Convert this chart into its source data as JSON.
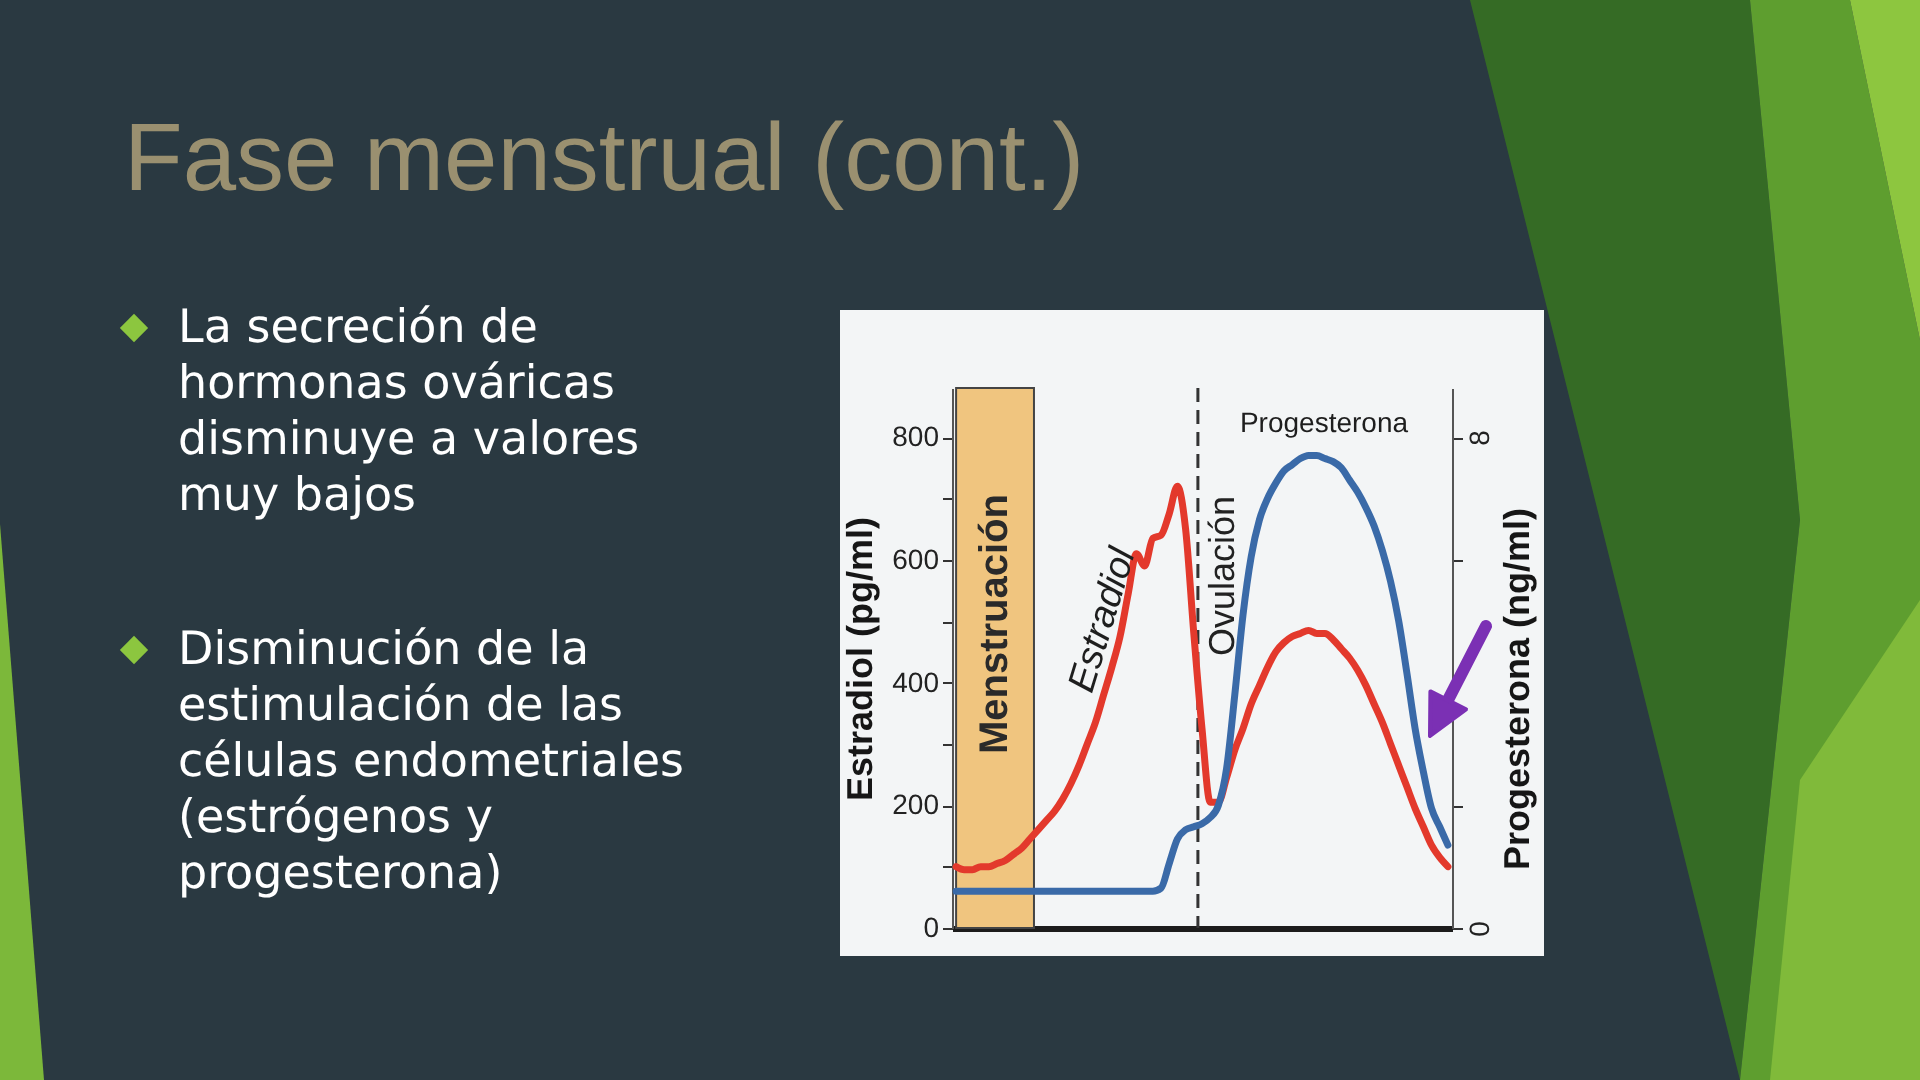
{
  "chart_data": {
    "type": "line",
    "title": "Fase menstrual (cont.)",
    "ylabel": "Estradiol (pg/ml)",
    "y2label": "Progesterona (ng/ml)",
    "annotations": [
      "La secreción de hormonas ováricas disminuye a valores muy bajos",
      "Disminución de la estimulación de las células endometriales (estrógenos y progesterona)",
      "Menstruación",
      "Ovulación"
    ],
    "categories": [
      null,
      null,
      null,
      null,
      null,
      null,
      null,
      null,
      null,
      null,
      null,
      null,
      null,
      null,
      null,
      null,
      null,
      null,
      null,
      null,
      null,
      null,
      null,
      null,
      null,
      null,
      null,
      null,
      null,
      null,
      null,
      null,
      null,
      null,
      null,
      null,
      null,
      null,
      null,
      null,
      null,
      null,
      null,
      null,
      null,
      null,
      null,
      null,
      null,
      null,
      null,
      null,
      null,
      null,
      null,
      null,
      null,
      null,
      null,
      null,
      null
    ],
    "series": [
      {
        "name": "Estradiol",
        "color": "#e3392c",
        "values": [
          100,
          95,
          95,
          100,
          100,
          105,
          110,
          120,
          130,
          145,
          160,
          175,
          190,
          210,
          235,
          265,
          300,
          335,
          380,
          425,
          475,
          545,
          610,
          590,
          635,
          640,
          675,
          720,
          650,
          480,
          325,
          205,
          205,
          245,
          290,
          325,
          365,
          395,
          425,
          450,
          465,
          475,
          480,
          485,
          480,
          480,
          470,
          455,
          440,
          420,
          395,
          365,
          335,
          300,
          265,
          230,
          195,
          165,
          135,
          115,
          100
        ]
      },
      {
        "name": "Progesterona",
        "color": "#3a6aa8",
        "axis": "y2",
        "values": [
          0.6,
          0.6,
          0.6,
          0.6,
          0.6,
          0.6,
          0.6,
          0.6,
          0.6,
          0.6,
          0.6,
          0.6,
          0.6,
          0.6,
          0.6,
          0.6,
          0.6,
          0.6,
          0.6,
          0.6,
          0.6,
          0.6,
          0.6,
          0.6,
          0.6,
          0.65,
          1.05,
          1.45,
          1.6,
          1.65,
          1.7,
          1.8,
          2.0,
          2.6,
          3.8,
          5.1,
          6.05,
          6.65,
          7.0,
          7.25,
          7.45,
          7.55,
          7.65,
          7.7,
          7.7,
          7.65,
          7.6,
          7.5,
          7.3,
          7.1,
          6.85,
          6.55,
          6.15,
          5.65,
          5.0,
          4.15,
          3.25,
          2.55,
          1.95,
          1.65,
          1.35
        ]
      }
    ],
    "ylim": [
      0,
      880
    ],
    "yticks": [
      0,
      {
        "value": 100,
        "label": null
      },
      200,
      {
        "value": 300,
        "label": null
      },
      400,
      {
        "value": 500,
        "label": null
      },
      600,
      {
        "value": 700,
        "label": null
      },
      800
    ],
    "y2lim": [
      0,
      8.8
    ],
    "y2ticks": [
      0,
      {
        "value": 2,
        "label": null
      },
      {
        "value": 6,
        "label": null
      },
      8
    ]
  }
}
